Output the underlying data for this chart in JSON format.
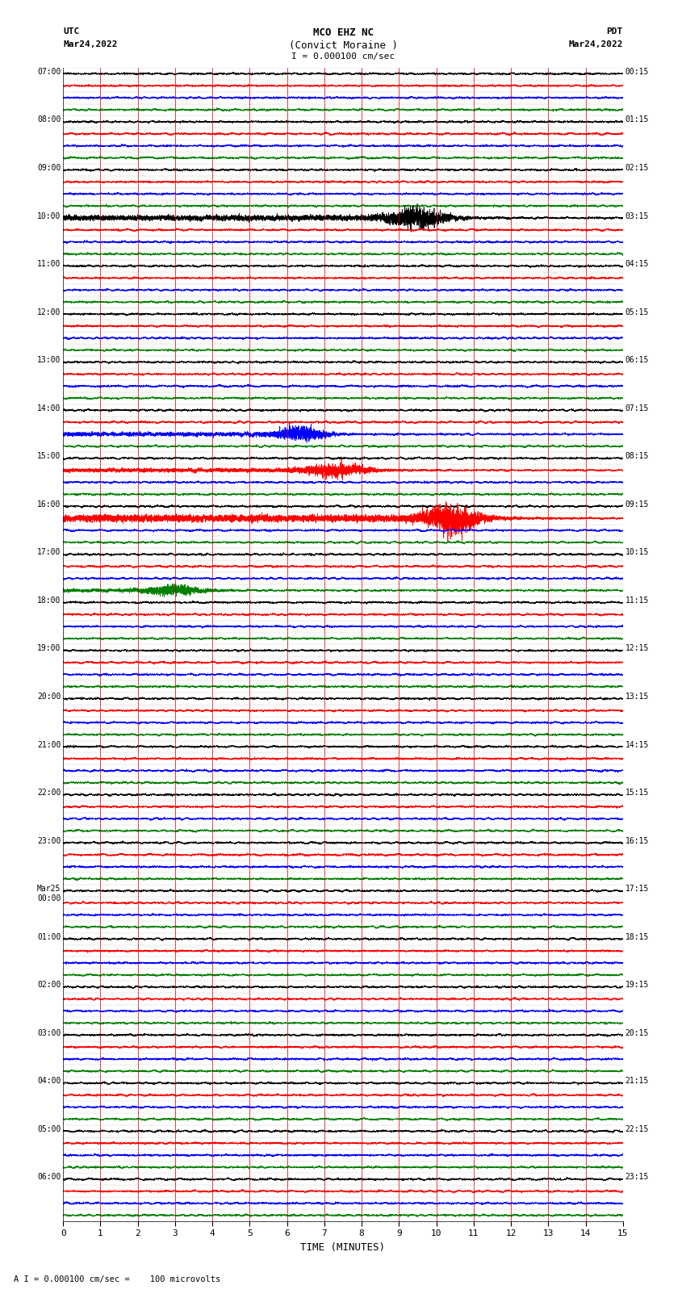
{
  "title_line1": "MCO EHZ NC",
  "title_line2": "(Convict Moraine )",
  "title_line3": "I = 0.000100 cm/sec",
  "left_header_line1": "UTC",
  "left_header_line2": "Mar24,2022",
  "right_header_line1": "PDT",
  "right_header_line2": "Mar24,2022",
  "xlabel": "TIME (MINUTES)",
  "footer": "A I = 0.000100 cm/sec =    100 microvolts",
  "utc_labels": [
    "07:00",
    "08:00",
    "09:00",
    "10:00",
    "11:00",
    "12:00",
    "13:00",
    "14:00",
    "15:00",
    "16:00",
    "17:00",
    "18:00",
    "19:00",
    "20:00",
    "21:00",
    "22:00",
    "23:00",
    "Mar25\n00:00",
    "01:00",
    "02:00",
    "03:00",
    "04:00",
    "05:00",
    "06:00"
  ],
  "pdt_labels": [
    "00:15",
    "01:15",
    "02:15",
    "03:15",
    "04:15",
    "05:15",
    "06:15",
    "07:15",
    "08:15",
    "09:15",
    "10:15",
    "11:15",
    "12:15",
    "13:15",
    "14:15",
    "15:15",
    "16:15",
    "17:15",
    "18:15",
    "19:15",
    "20:15",
    "21:15",
    "22:15",
    "23:15"
  ],
  "n_rows": 96,
  "n_hours": 24,
  "traces_per_hour": 4,
  "colors": [
    "black",
    "red",
    "blue",
    "green"
  ],
  "bg_color": "white",
  "base_noise": 0.06,
  "xmin": 0,
  "xmax": 15,
  "minute_ticks": [
    0,
    1,
    2,
    3,
    4,
    5,
    6,
    7,
    8,
    9,
    10,
    11,
    12,
    13,
    14,
    15
  ],
  "seed": 12345,
  "vline_color": "#cc0000",
  "hline_color": "#888888",
  "linewidth": 0.5
}
